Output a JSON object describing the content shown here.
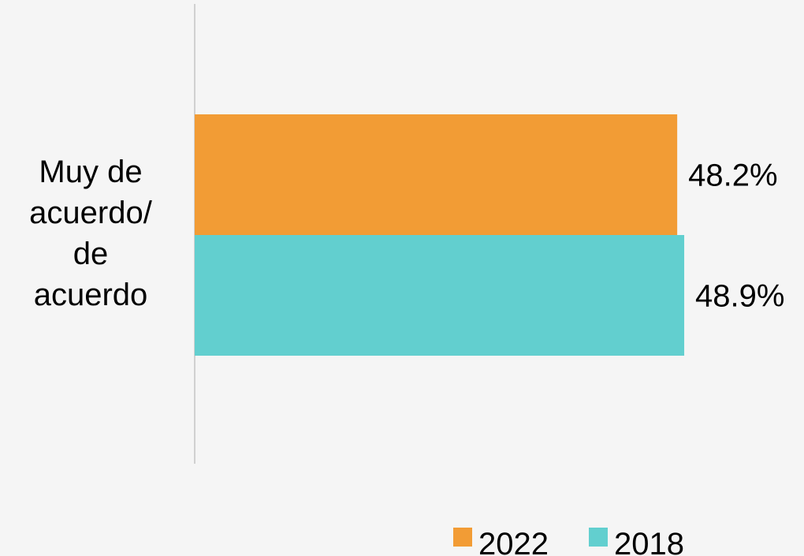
{
  "chart_data": {
    "type": "bar",
    "orientation": "horizontal",
    "title": "",
    "categories": [
      "Muy de acuerdo/ de acuerdo"
    ],
    "category_label_lines": [
      "Muy de",
      "acuerdo/",
      "de",
      "acuerdo"
    ],
    "series": [
      {
        "name": "2022",
        "values": [
          48.2
        ],
        "color": "#f29c35",
        "label": "48.2%"
      },
      {
        "name": "2018",
        "values": [
          48.9
        ],
        "color": "#62cfcf",
        "label": "48.9%"
      }
    ],
    "xlim": [
      0,
      70
    ],
    "grid": false,
    "legend": "bottom",
    "axis_color": "#d0d0d0",
    "background": "#f5f5f5"
  }
}
